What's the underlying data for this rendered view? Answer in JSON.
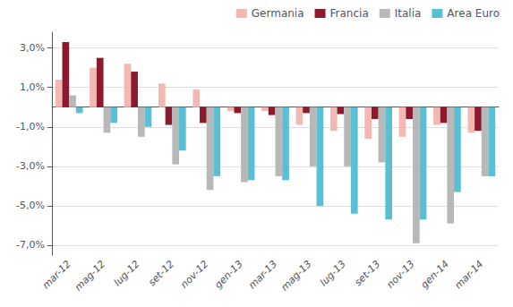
{
  "chart_data": {
    "type": "bar",
    "categories": [
      "mar-12",
      "mag-12",
      "lug-12",
      "set-12",
      "nov-12",
      "gen-13",
      "mar-13",
      "mag-13",
      "lug-13",
      "set-13",
      "nov-13",
      "gen-14",
      "mar-14"
    ],
    "series": [
      {
        "name": "Germania",
        "color": "#f4b8b2",
        "values": [
          1.4,
          2.0,
          2.2,
          1.2,
          0.9,
          -0.2,
          -0.2,
          -0.9,
          -1.2,
          -1.6,
          -1.5,
          -0.9,
          -1.3
        ]
      },
      {
        "name": "Francia",
        "color": "#8b1a2e",
        "values": [
          3.3,
          2.5,
          1.8,
          -0.9,
          -0.8,
          -0.3,
          -0.4,
          -0.3,
          -0.35,
          -0.6,
          -0.6,
          -0.8,
          -1.2
        ]
      },
      {
        "name": "Italia",
        "color": "#b8b8b8",
        "values": [
          0.6,
          -1.3,
          -1.5,
          -2.9,
          -4.2,
          -3.8,
          -3.5,
          -3.0,
          -3.0,
          -2.8,
          -6.9,
          -5.9,
          -3.5
        ]
      },
      {
        "name": "Area Euro",
        "color": "#5bbfd4",
        "values": [
          -0.3,
          -0.8,
          -1.0,
          -2.2,
          -3.5,
          -3.7,
          -3.7,
          -5.0,
          -5.4,
          -5.7,
          -5.7,
          -4.3,
          -3.5
        ]
      }
    ],
    "ylim": [
      -7.5,
      3.8
    ],
    "yticks": [
      {
        "value": -7.0,
        "label": "-7,0%"
      },
      {
        "value": -5.0,
        "label": "-5,0%"
      },
      {
        "value": -3.0,
        "label": "-3,0%"
      },
      {
        "value": -1.0,
        "label": "-1,0%"
      },
      {
        "value": 1.0,
        "label": "1,0%"
      },
      {
        "value": 3.0,
        "label": "3,0%"
      }
    ],
    "grid": true,
    "legend": "upper right"
  }
}
